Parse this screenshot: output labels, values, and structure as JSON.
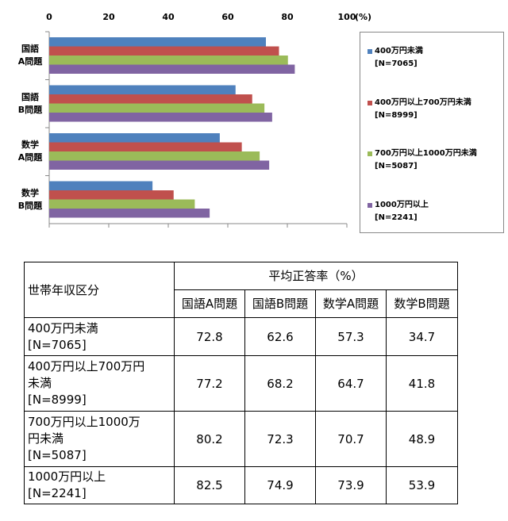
{
  "chart_data": {
    "type": "barh",
    "xlabel": "(%)",
    "categories": [
      "国語\nA問題",
      "国語\nB問題",
      "数学\nA問題",
      "数学\nB問題"
    ],
    "series": [
      {
        "name": "400万円未満\n[N=7065]",
        "color": "#4f81bd",
        "values": [
          72.8,
          62.6,
          57.3,
          34.7
        ]
      },
      {
        "name": "400万円以上700万円未満\n[N=8999]",
        "color": "#c0504d",
        "values": [
          77.2,
          68.2,
          64.7,
          41.8
        ]
      },
      {
        "name": "700万円以上1000万円未満\n[N=5087]",
        "color": "#9bbb59",
        "values": [
          80.2,
          72.3,
          70.7,
          48.9
        ]
      },
      {
        "name": "1000万円以上\n[N=2241]",
        "color": "#8064a2",
        "values": [
          82.5,
          74.9,
          73.9,
          53.9
        ]
      }
    ],
    "xlim": [
      0,
      100
    ],
    "xticks": [
      0,
      20,
      40,
      60,
      80,
      100
    ],
    "legend": "right"
  },
  "table": {
    "header": "世帯年収区分",
    "group_header": "平均正答率（%）",
    "columns": [
      "国語A問題",
      "国語B問題",
      "数学A問題",
      "数学B問題"
    ],
    "rows": [
      {
        "label": "400万円未満\n[N=7065]",
        "values": [
          72.8,
          62.6,
          57.3,
          34.7
        ]
      },
      {
        "label": "400万円以上700万円\n未満\n[N=8999]",
        "values": [
          77.2,
          68.2,
          64.7,
          41.8
        ]
      },
      {
        "label": "700万円以上1000万\n円未満\n[N=5087]",
        "values": [
          80.2,
          72.3,
          70.7,
          48.9
        ]
      },
      {
        "label": "1000万円以上\n[N=2241]",
        "values": [
          82.5,
          74.9,
          73.9,
          53.9
        ]
      }
    ]
  }
}
